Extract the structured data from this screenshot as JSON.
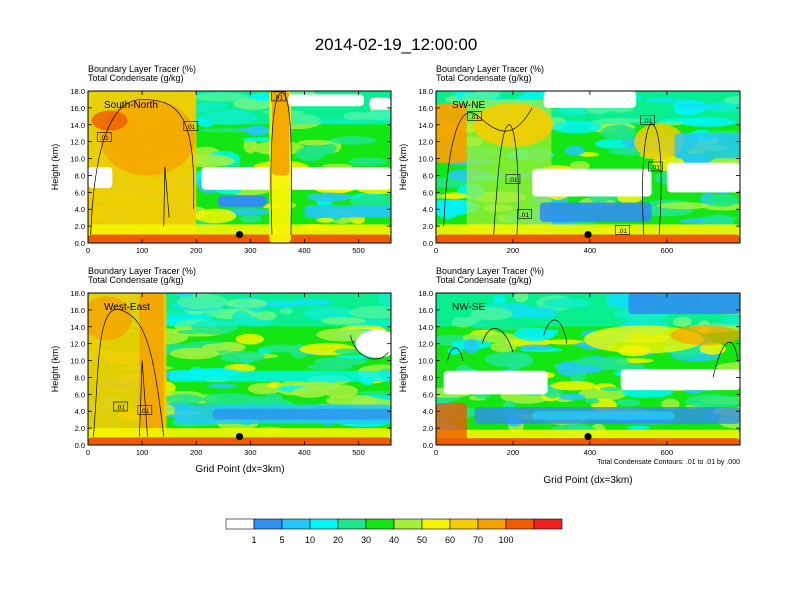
{
  "title": "2014-02-19_12:00:00",
  "panel_header": {
    "line1_label": "Boundary Layer Tracer",
    "line1_unit": "(%)",
    "line2_label": "Total Condensate",
    "line2_unit": "(g/kg)"
  },
  "ylabel": "Height (km)",
  "xlabel": "Grid Point (dx=3km)",
  "contour_note": "Total Condensate Contours: .01 to .01 by .000",
  "colors": {
    "levels": [
      "#ffffff",
      "#2f8ff0",
      "#24c8f8",
      "#00f6f6",
      "#1ee58c",
      "#14e614",
      "#a6f03c",
      "#f5f500",
      "#f5cc00",
      "#f5a200",
      "#f05a00",
      "#f01e1e"
    ],
    "boundaries": [
      "1",
      "5",
      "10",
      "20",
      "30",
      "40",
      "50",
      "60",
      "70",
      "100"
    ]
  },
  "chart_data": [
    {
      "type": "heatmap",
      "name": "South-North",
      "xlim": [
        0,
        560
      ],
      "ylim": [
        0,
        18
      ],
      "xticks": [
        "0",
        "100",
        "200",
        "300",
        "400",
        "500"
      ],
      "yticks": [
        "0.0",
        "2.0",
        "4.0",
        "6.0",
        "8.0",
        "10.0",
        "12.0",
        "14.0",
        "16.0",
        "18.0"
      ],
      "marker": {
        "x": 280,
        "y": 1.0
      },
      "contour_labels": [
        {
          "text": ".01",
          "x": 30,
          "y": 12.5
        },
        {
          "text": ".01",
          "x": 190,
          "y": 13.8
        },
        {
          "text": ".01",
          "x": 352,
          "y": 17.3
        }
      ]
    },
    {
      "type": "heatmap",
      "name": "SW-NE",
      "xlim": [
        0,
        790
      ],
      "ylim": [
        0,
        18
      ],
      "xticks": [
        "0",
        "200",
        "400",
        "600"
      ],
      "yticks": [
        "0.0",
        "2.0",
        "4.0",
        "6.0",
        "8.0",
        "10.0",
        "12.0",
        "14.0",
        "16.0",
        "18.0"
      ],
      "marker": {
        "x": 395,
        "y": 1.0
      },
      "contour_labels": [
        {
          "text": ".01",
          "x": 100,
          "y": 15.0
        },
        {
          "text": ".01",
          "x": 200,
          "y": 7.5
        },
        {
          "text": ".01",
          "x": 230,
          "y": 3.4
        },
        {
          "text": ".01",
          "x": 550,
          "y": 14.5
        },
        {
          "text": ".01",
          "x": 570,
          "y": 9.0
        },
        {
          "text": ".01",
          "x": 485,
          "y": 1.5
        }
      ]
    },
    {
      "type": "heatmap",
      "name": "West-East",
      "xlim": [
        0,
        560
      ],
      "ylim": [
        0,
        18
      ],
      "xticks": [
        "0",
        "100",
        "200",
        "300",
        "400",
        "500"
      ],
      "yticks": [
        "0.0",
        "2.0",
        "4.0",
        "6.0",
        "8.0",
        "10.0",
        "12.0",
        "14.0",
        "16.0",
        "18.0"
      ],
      "marker": {
        "x": 280,
        "y": 1.0
      },
      "contour_labels": [
        {
          "text": ".01",
          "x": 60,
          "y": 4.5
        },
        {
          "text": ".01",
          "x": 105,
          "y": 4.1
        }
      ]
    },
    {
      "type": "heatmap",
      "name": "NW-SE",
      "xlim": [
        0,
        790
      ],
      "ylim": [
        0,
        18
      ],
      "xticks": [
        "0",
        "200",
        "400",
        "600"
      ],
      "yticks": [
        "0.0",
        "2.0",
        "4.0",
        "6.0",
        "8.0",
        "10.0",
        "12.0",
        "14.0",
        "16.0",
        "18.0"
      ],
      "marker": {
        "x": 395,
        "y": 1.0
      },
      "contour_labels": []
    }
  ]
}
